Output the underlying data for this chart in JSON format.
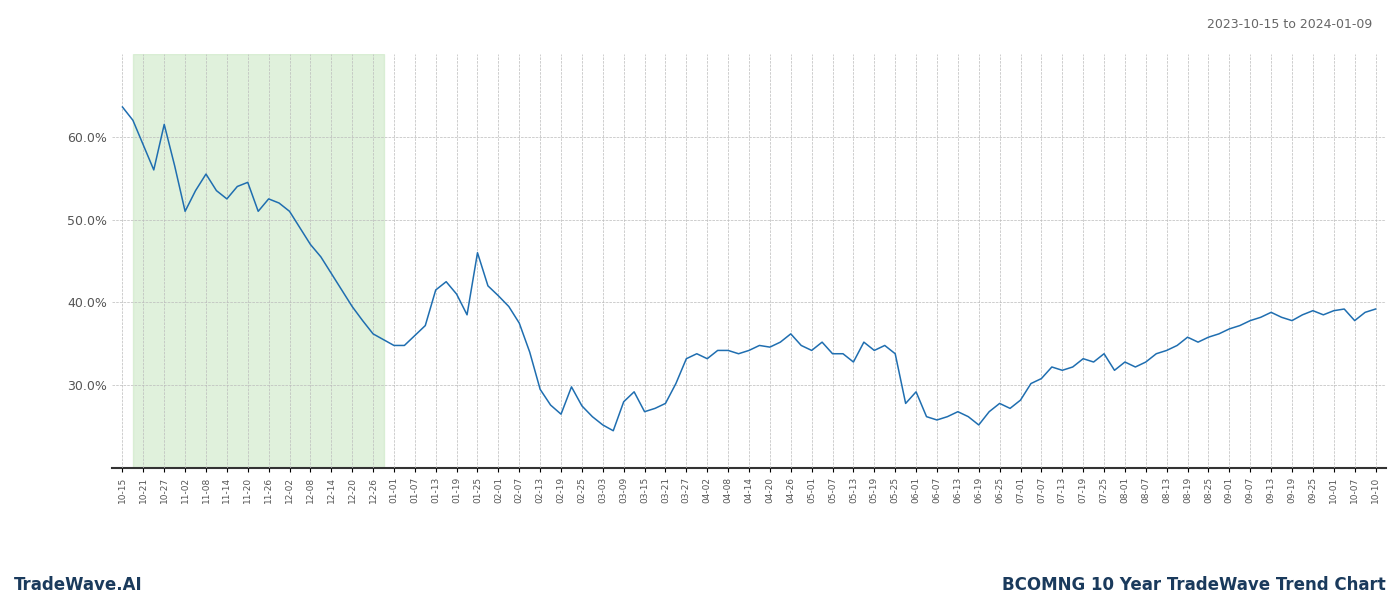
{
  "title_right": "2023-10-15 to 2024-01-09",
  "footer_left": "TradeWave.AI",
  "footer_right": "BCOMNG 10 Year TradeWave Trend Chart",
  "line_color": "#1f6eb0",
  "highlight_color": "#c8e6c0",
  "highlight_alpha": 0.55,
  "background_color": "#ffffff",
  "grid_color": "#bbbbbb",
  "ylim": [
    0.2,
    0.7
  ],
  "yticks": [
    0.3,
    0.4,
    0.5,
    0.6
  ],
  "x_labels": [
    "10-15",
    "10-21",
    "10-27",
    "11-02",
    "11-08",
    "11-14",
    "11-20",
    "11-26",
    "12-02",
    "12-08",
    "12-14",
    "12-20",
    "12-26",
    "01-01",
    "01-07",
    "01-13",
    "01-19",
    "01-25",
    "02-01",
    "02-07",
    "02-13",
    "02-19",
    "02-25",
    "03-03",
    "03-09",
    "03-15",
    "03-21",
    "03-27",
    "04-02",
    "04-08",
    "04-14",
    "04-20",
    "04-26",
    "05-01",
    "05-07",
    "05-13",
    "05-19",
    "05-25",
    "06-01",
    "06-07",
    "06-13",
    "06-19",
    "06-25",
    "07-01",
    "07-07",
    "07-13",
    "07-19",
    "07-25",
    "08-01",
    "08-07",
    "08-13",
    "08-19",
    "08-25",
    "09-01",
    "09-07",
    "09-13",
    "09-19",
    "09-25",
    "10-01",
    "10-07",
    "10-10"
  ],
  "y_values": [
    0.636,
    0.62,
    0.59,
    0.56,
    0.615,
    0.565,
    0.51,
    0.535,
    0.555,
    0.535,
    0.525,
    0.54,
    0.545,
    0.51,
    0.525,
    0.52,
    0.51,
    0.49,
    0.47,
    0.455,
    0.435,
    0.415,
    0.395,
    0.378,
    0.362,
    0.355,
    0.348,
    0.348,
    0.36,
    0.372,
    0.415,
    0.425,
    0.41,
    0.385,
    0.46,
    0.42,
    0.408,
    0.395,
    0.375,
    0.34,
    0.295,
    0.276,
    0.265,
    0.298,
    0.275,
    0.262,
    0.252,
    0.245,
    0.28,
    0.292,
    0.268,
    0.272,
    0.278,
    0.302,
    0.332,
    0.338,
    0.332,
    0.342,
    0.342,
    0.338,
    0.342,
    0.348,
    0.346,
    0.352,
    0.362,
    0.348,
    0.342,
    0.352,
    0.338,
    0.338,
    0.328,
    0.352,
    0.342,
    0.348,
    0.338,
    0.278,
    0.292,
    0.262,
    0.258,
    0.262,
    0.268,
    0.262,
    0.252,
    0.268,
    0.278,
    0.272,
    0.282,
    0.302,
    0.308,
    0.322,
    0.318,
    0.322,
    0.332,
    0.328,
    0.338,
    0.318,
    0.328,
    0.322,
    0.328,
    0.338,
    0.342,
    0.348,
    0.358,
    0.352,
    0.358,
    0.362,
    0.368,
    0.372,
    0.378,
    0.382,
    0.388,
    0.382,
    0.378,
    0.385,
    0.39,
    0.385,
    0.39,
    0.392,
    0.378,
    0.388,
    0.392
  ],
  "highlight_start_label": "10-21",
  "highlight_end_label": "12-26",
  "n_labels": 61
}
